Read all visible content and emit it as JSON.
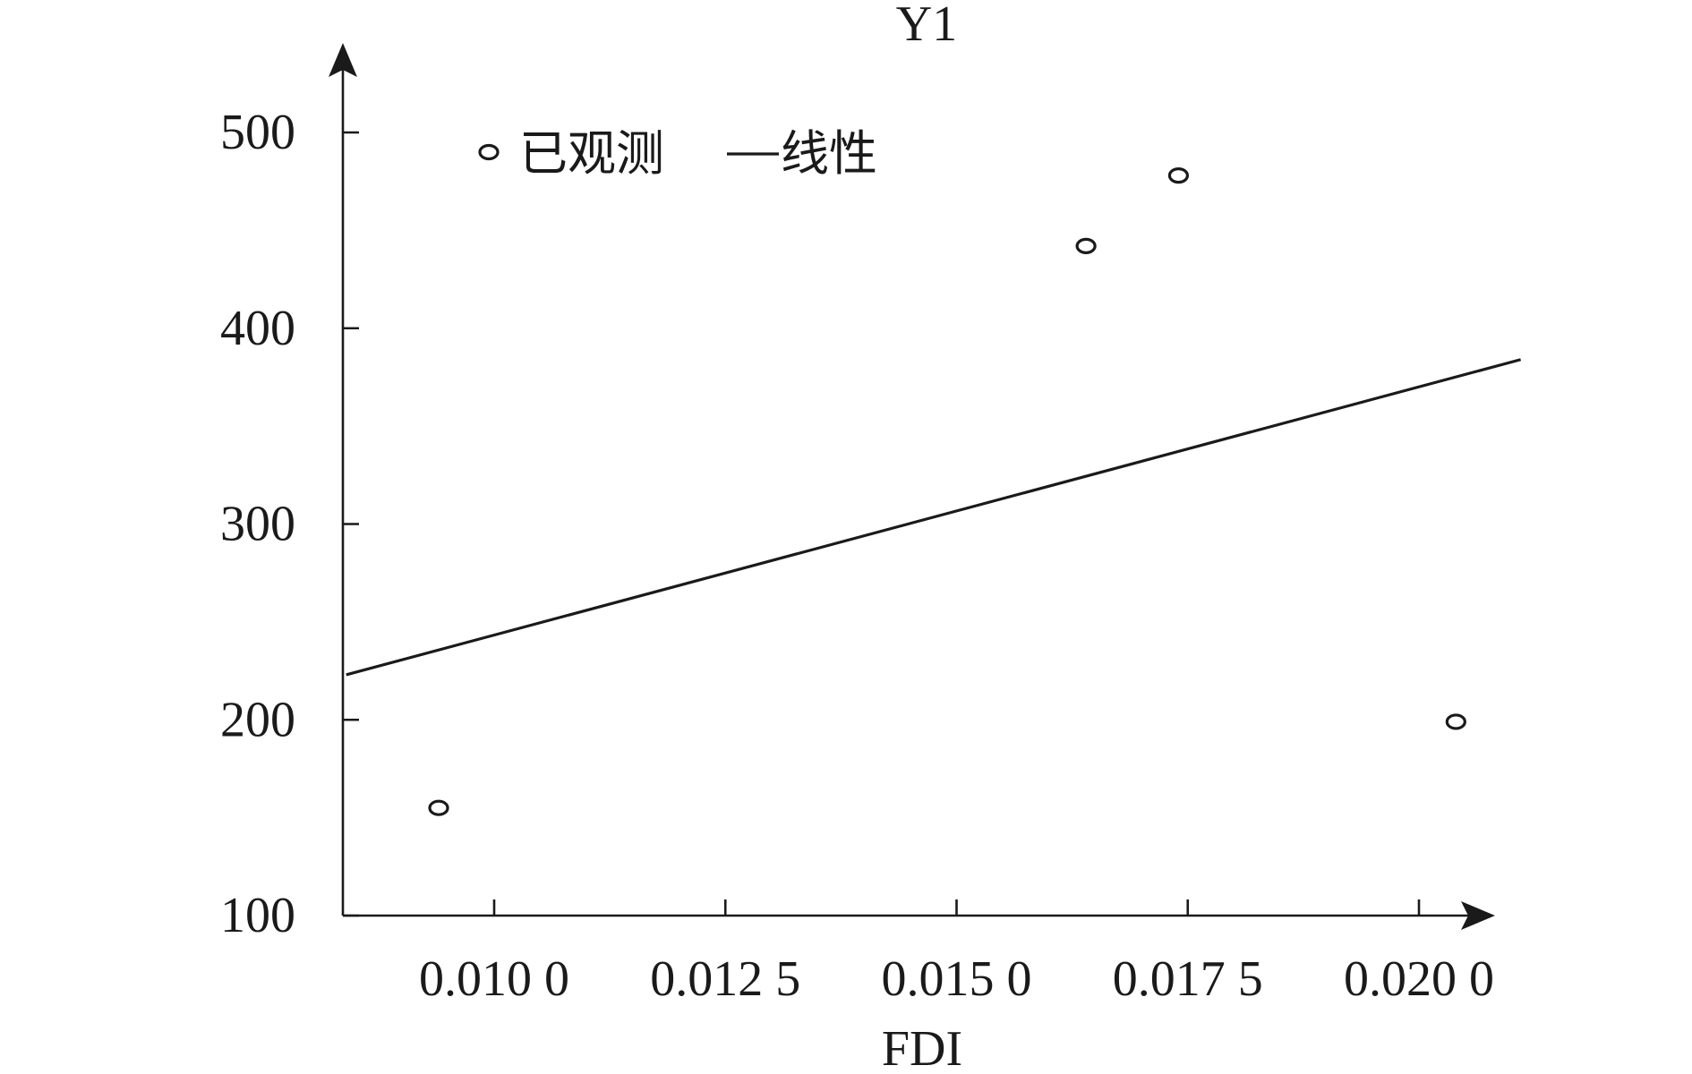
{
  "chart_data": {
    "type": "scatter",
    "title": "Y1",
    "xlabel": "FDI",
    "ylabel": "",
    "xlim": [
      0.0084,
      0.0211
    ],
    "ylim": [
      100,
      540
    ],
    "x_ticks": [
      0.01,
      0.0125,
      0.015,
      0.0175,
      0.02
    ],
    "x_tick_labels": [
      "0.010 0",
      "0.012 5",
      "0.015 0",
      "0.017 5",
      "0.020 0"
    ],
    "y_ticks": [
      100,
      200,
      300,
      400,
      500
    ],
    "y_tick_labels": [
      "100",
      "200",
      "300",
      "400",
      "500"
    ],
    "legend": {
      "placement": "top-left",
      "observed_label": "已观测",
      "linear_label": "线性"
    },
    "series": [
      {
        "name": "已观测",
        "kind": "points",
        "x": [
          0.0094,
          0.0164,
          0.0174,
          0.0204
        ],
        "y": [
          155,
          442,
          478,
          199
        ]
      },
      {
        "name": "线性",
        "kind": "line",
        "x": [
          0.0084,
          0.0211
        ],
        "y": [
          223,
          384
        ]
      }
    ],
    "grid": false
  }
}
